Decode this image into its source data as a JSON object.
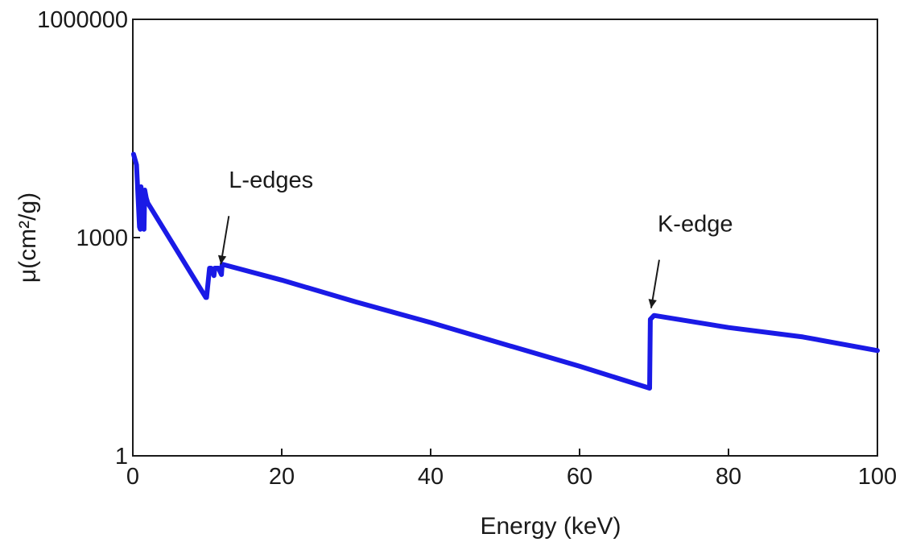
{
  "chart_data": {
    "type": "line",
    "title": "",
    "xlabel": "Energy (keV)",
    "ylabel": "μ(cm²/g)",
    "y_scale": "log",
    "xlim": [
      0,
      100
    ],
    "ylim": [
      1,
      1000000
    ],
    "grid": false,
    "legend": "none",
    "x_ticks": [
      0,
      20,
      40,
      60,
      80,
      100
    ],
    "x_tick_labels": [
      "0",
      "20",
      "40",
      "60",
      "80",
      "100"
    ],
    "y_ticks": [
      1,
      1000,
      1000000
    ],
    "y_tick_labels": [
      "1",
      "1000",
      "1000000"
    ],
    "line_color": "#1a1ae6",
    "series": [
      {
        "x": [
          0.1,
          0.5,
          0.9,
          1.0,
          1.1,
          1.3,
          1.5,
          1.6,
          1.8,
          2.0,
          9.8,
          9.9,
          10.3,
          10.5,
          10.9,
          11.0,
          11.5,
          11.9,
          12.0,
          20.0,
          30.0,
          40.0,
          50.0,
          60.0,
          69.4,
          69.5,
          70.0,
          80.0,
          90.0,
          100.0
        ],
        "y": [
          14000,
          10000,
          1400,
          1300,
          5000,
          2500,
          1300,
          4500,
          3500,
          3000,
          150,
          150,
          380,
          380,
          300,
          380,
          380,
          310,
          430,
          260,
          130,
          68,
          34,
          17,
          8.5,
          75,
          85,
          58,
          43,
          28
        ]
      }
    ],
    "annotations": [
      {
        "text": "L-edges",
        "x": 11.6,
        "y": 300
      },
      {
        "text": "K-edge",
        "x": 69.4,
        "y": 75
      }
    ]
  }
}
